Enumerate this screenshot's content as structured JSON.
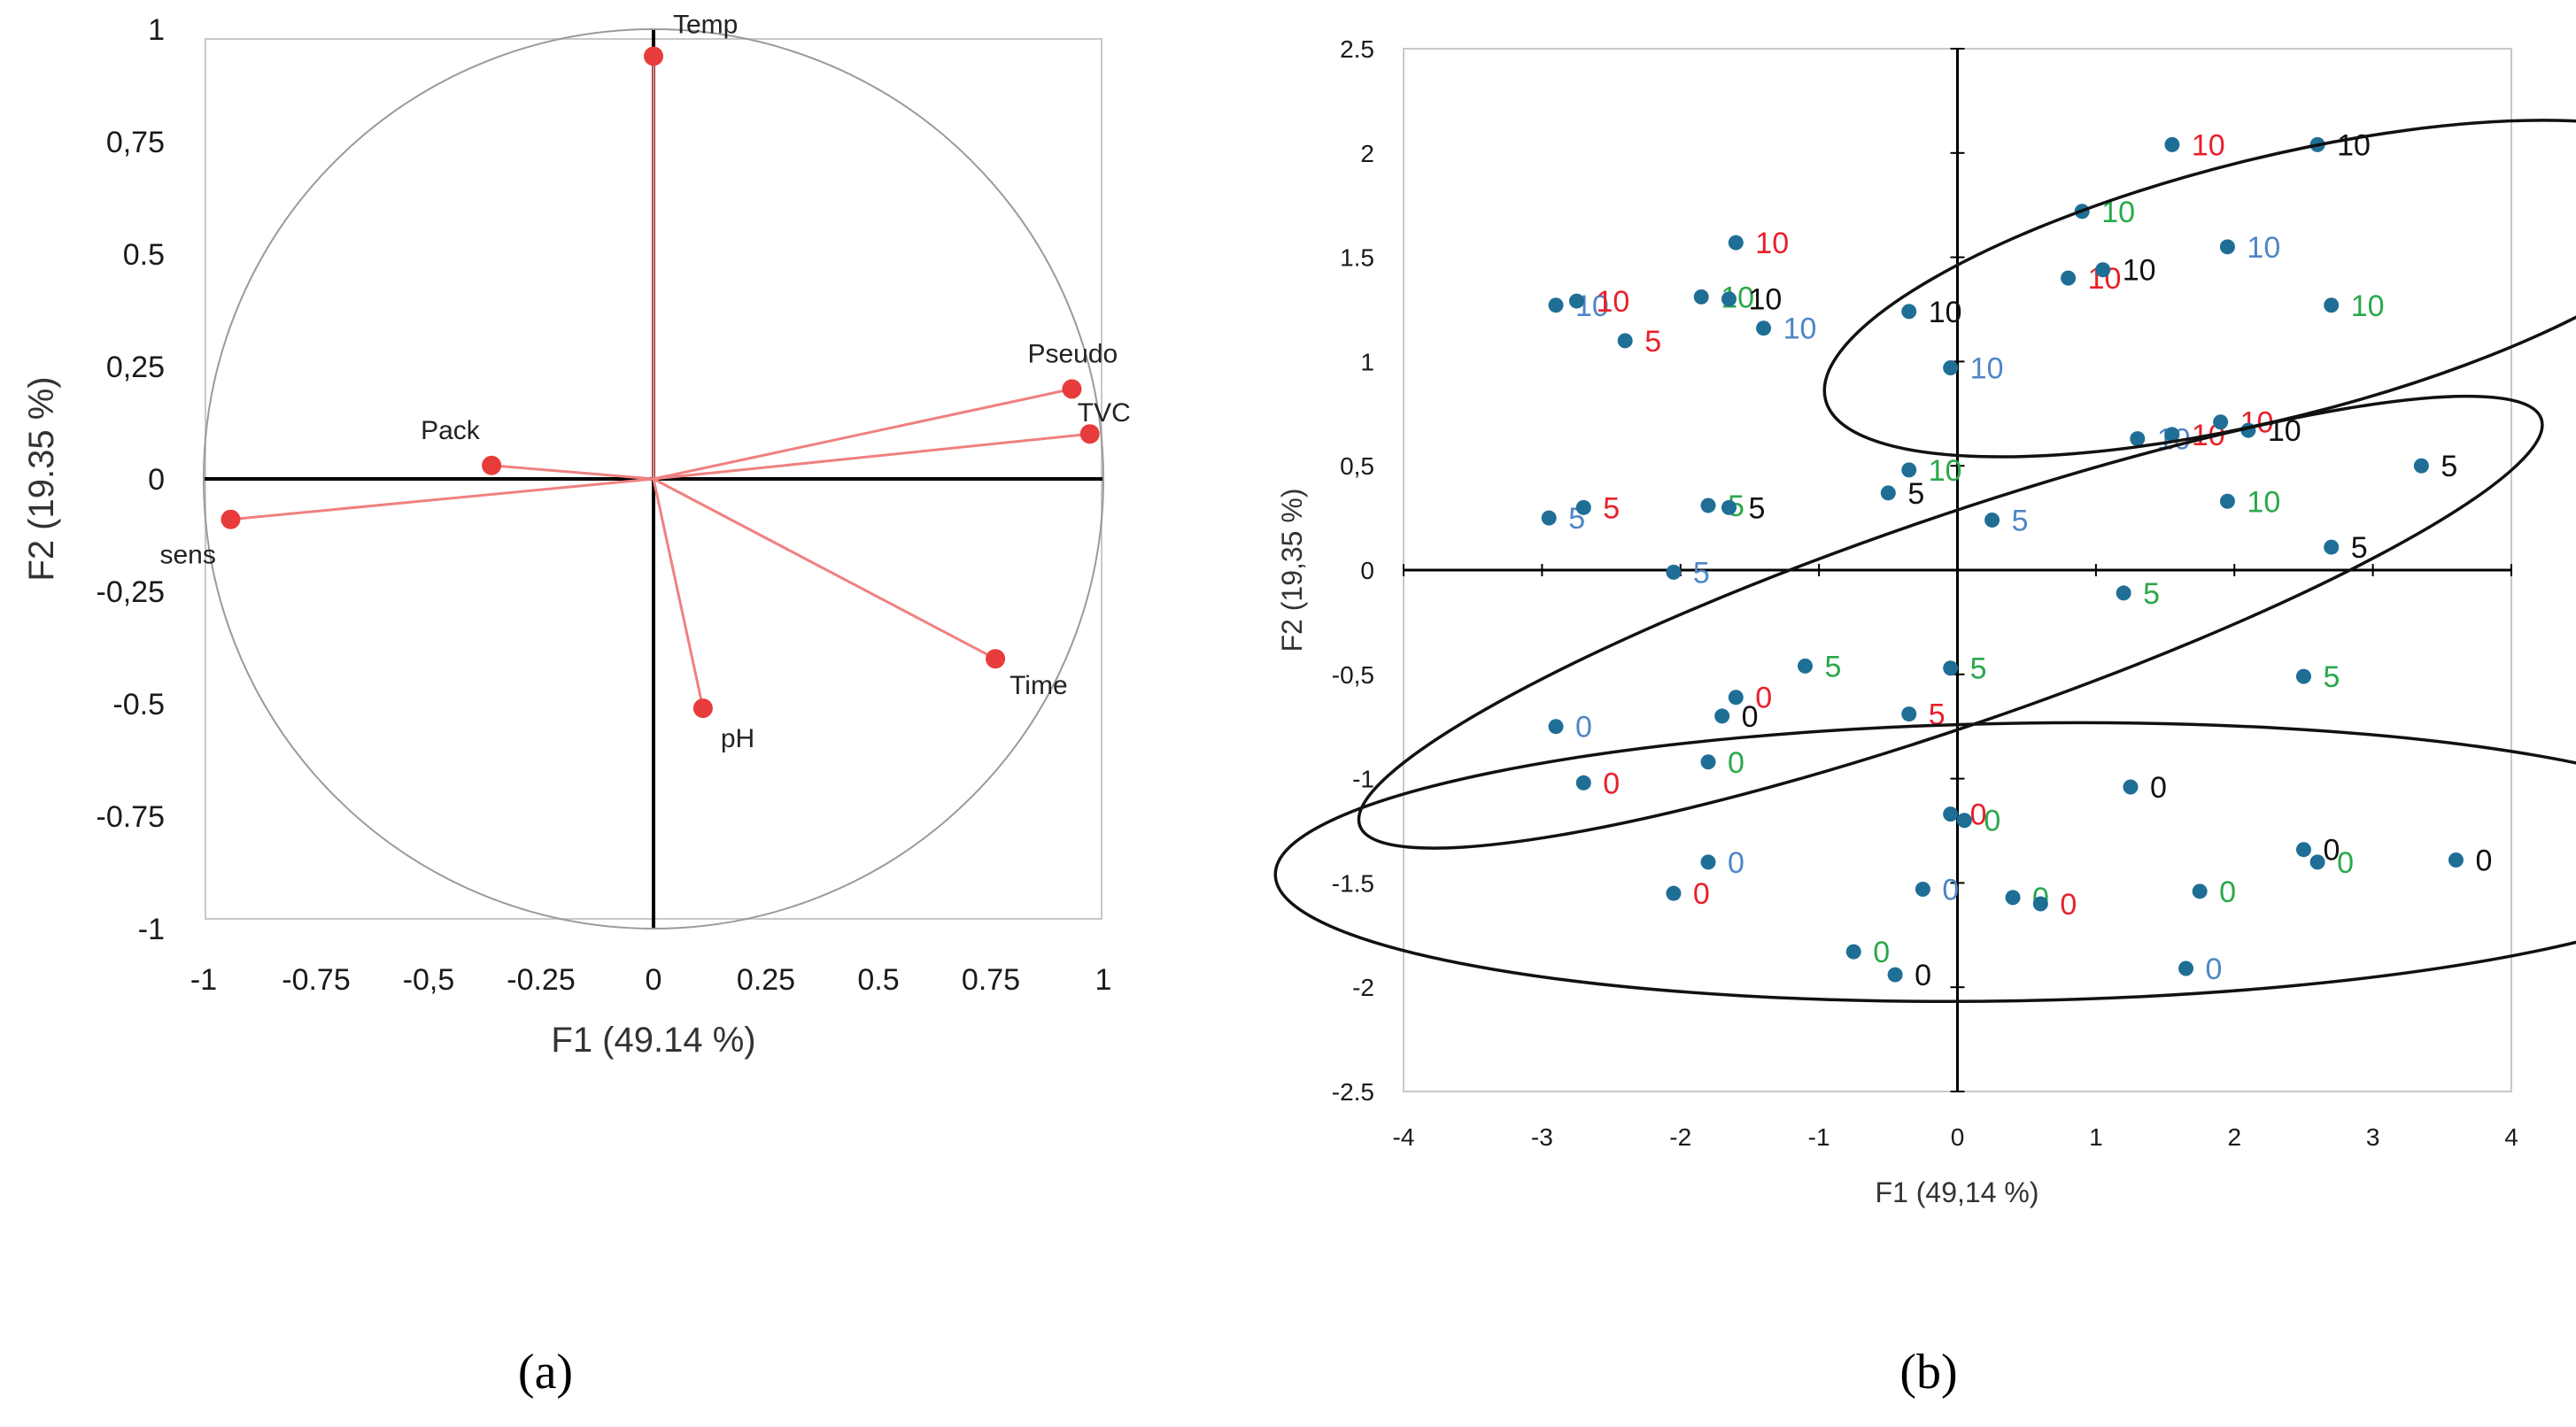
{
  "panel_labels": [
    "(a)",
    "(b)"
  ],
  "chart_data": [
    {
      "type": "scatter",
      "xlabel": "F1 (49.14 %)",
      "ylabel": "F2 (19.35 %)",
      "xlim": [
        -1,
        1
      ],
      "ylim": [
        -1,
        1
      ],
      "x_ticks": [
        "-1",
        "-0.75",
        "-0,5",
        "-0.25",
        "0",
        "0.25",
        "0.5",
        "0.75",
        "1"
      ],
      "x_tick_values": [
        -1,
        -0.75,
        -0.5,
        -0.25,
        0,
        0.25,
        0.5,
        0.75,
        1
      ],
      "y_ticks": [
        "1",
        "0,75",
        "0.5",
        "0,25",
        "0",
        "-0,25",
        "-0.5",
        "-0.75",
        "-1"
      ],
      "y_tick_values": [
        1,
        0.75,
        0.5,
        0.25,
        0,
        -0.25,
        -0.5,
        -0.75,
        -1
      ],
      "correlation_circle": true,
      "vector_color": "#f08080",
      "point_color": "#e83b3b",
      "variables": [
        {
          "label": "Temp",
          "x": 0.0,
          "y": 0.94
        },
        {
          "label": "Pseudo",
          "x": 0.93,
          "y": 0.2
        },
        {
          "label": "TVC",
          "x": 0.97,
          "y": 0.1
        },
        {
          "label": "Pack",
          "x": -0.36,
          "y": 0.03
        },
        {
          "label": "sens",
          "x": -0.94,
          "y": -0.09
        },
        {
          "label": "Time",
          "x": 0.76,
          "y": -0.4
        },
        {
          "label": "pH",
          "x": 0.11,
          "y": -0.51
        }
      ]
    },
    {
      "type": "scatter",
      "xlabel": "F1 (49,14 %)",
      "ylabel": "F2 (19,35 %)",
      "xlim": [
        -4,
        4
      ],
      "ylim": [
        -2.5,
        2.5
      ],
      "x_ticks": [
        "-4",
        "-3",
        "-2",
        "-1",
        "0",
        "1",
        "2",
        "3",
        "4"
      ],
      "x_tick_values": [
        -4,
        -3,
        -2,
        -1,
        0,
        1,
        2,
        3,
        4
      ],
      "y_ticks": [
        "2.5",
        "2",
        "1.5",
        "1",
        "0,5",
        "0",
        "-0,5",
        "-1",
        "-1.5",
        "-2",
        "-2.5"
      ],
      "y_tick_values": [
        2.5,
        2,
        1.5,
        1,
        0.5,
        0,
        -0.5,
        -1,
        -1.5,
        -2,
        -2.5
      ],
      "point_color": "#1f6e96",
      "label_colors": {
        "black": "#111111",
        "red": "#e8202a",
        "green": "#2aa84a",
        "blue": "#4f86c6"
      },
      "ellipses": [
        {
          "cx": 2.27,
          "cy": 1.35,
          "rx": 2.65,
          "ry": 0.75,
          "angle_deg": -14
        },
        {
          "cx": -0.05,
          "cy": -0.25,
          "rx": 3.6,
          "ry": 0.6,
          "angle_deg": -19
        },
        {
          "cx": 0.4,
          "cy": -1.4,
          "rx": 4.25,
          "ry": 0.8,
          "angle_deg": -1
        }
      ],
      "points": [
        {
          "x": 1.55,
          "y": 2.04,
          "label": "10",
          "color": "red"
        },
        {
          "x": 2.6,
          "y": 2.04,
          "label": "10",
          "color": "black"
        },
        {
          "x": 0.9,
          "y": 1.72,
          "label": "10",
          "color": "green"
        },
        {
          "x": -1.6,
          "y": 1.57,
          "label": "10",
          "color": "red"
        },
        {
          "x": 1.95,
          "y": 1.55,
          "label": "10",
          "color": "blue"
        },
        {
          "x": 0.8,
          "y": 1.4,
          "label": "10",
          "color": "red"
        },
        {
          "x": 1.05,
          "y": 1.44,
          "label": "10",
          "color": "black"
        },
        {
          "x": 2.7,
          "y": 1.27,
          "label": "10",
          "color": "green"
        },
        {
          "x": -2.9,
          "y": 1.27,
          "label": "10",
          "color": "blue"
        },
        {
          "x": -2.75,
          "y": 1.29,
          "label": "10",
          "color": "red"
        },
        {
          "x": -1.85,
          "y": 1.31,
          "label": "10",
          "color": "green"
        },
        {
          "x": -1.65,
          "y": 1.3,
          "label": "10",
          "color": "black"
        },
        {
          "x": -0.35,
          "y": 1.24,
          "label": "10",
          "color": "black"
        },
        {
          "x": -1.4,
          "y": 1.16,
          "label": "10",
          "color": "blue"
        },
        {
          "x": -0.05,
          "y": 0.97,
          "label": "10",
          "color": "blue"
        },
        {
          "x": -2.4,
          "y": 1.1,
          "label": "5",
          "color": "red"
        },
        {
          "x": 1.3,
          "y": 0.63,
          "label": "10",
          "color": "blue"
        },
        {
          "x": 1.55,
          "y": 0.65,
          "label": "10",
          "color": "red"
        },
        {
          "x": 1.9,
          "y": 0.71,
          "label": "10",
          "color": "red"
        },
        {
          "x": 2.1,
          "y": 0.67,
          "label": "10",
          "color": "black"
        },
        {
          "x": -0.35,
          "y": 0.48,
          "label": "10",
          "color": "green"
        },
        {
          "x": 1.95,
          "y": 0.33,
          "label": "10",
          "color": "green"
        },
        {
          "x": 3.35,
          "y": 0.5,
          "label": "5",
          "color": "black"
        },
        {
          "x": -0.5,
          "y": 0.37,
          "label": "5",
          "color": "black"
        },
        {
          "x": -2.95,
          "y": 0.25,
          "label": "5",
          "color": "blue"
        },
        {
          "x": -2.7,
          "y": 0.3,
          "label": "5",
          "color": "red"
        },
        {
          "x": -1.8,
          "y": 0.31,
          "label": "5",
          "color": "green"
        },
        {
          "x": -1.65,
          "y": 0.3,
          "label": "5",
          "color": "black"
        },
        {
          "x": 0.25,
          "y": 0.24,
          "label": "5",
          "color": "blue"
        },
        {
          "x": 2.7,
          "y": 0.11,
          "label": "5",
          "color": "black"
        },
        {
          "x": -2.05,
          "y": -0.01,
          "label": "5",
          "color": "blue"
        },
        {
          "x": 1.2,
          "y": -0.11,
          "label": "5",
          "color": "green"
        },
        {
          "x": -1.1,
          "y": -0.46,
          "label": "5",
          "color": "green"
        },
        {
          "x": -0.05,
          "y": -0.47,
          "label": "5",
          "color": "green"
        },
        {
          "x": 2.5,
          "y": -0.51,
          "label": "5",
          "color": "green"
        },
        {
          "x": -0.35,
          "y": -0.69,
          "label": "5",
          "color": "red"
        },
        {
          "x": -1.6,
          "y": -0.61,
          "label": "0",
          "color": "red"
        },
        {
          "x": -1.7,
          "y": -0.7,
          "label": "0",
          "color": "black"
        },
        {
          "x": -2.9,
          "y": -0.75,
          "label": "0",
          "color": "blue"
        },
        {
          "x": -1.8,
          "y": -0.92,
          "label": "0",
          "color": "green"
        },
        {
          "x": -2.7,
          "y": -1.02,
          "label": "0",
          "color": "red"
        },
        {
          "x": 1.25,
          "y": -1.04,
          "label": "0",
          "color": "black"
        },
        {
          "x": -0.05,
          "y": -1.17,
          "label": "0",
          "color": "red"
        },
        {
          "x": 0.05,
          "y": -1.2,
          "label": "0",
          "color": "green"
        },
        {
          "x": 2.5,
          "y": -1.34,
          "label": "0",
          "color": "black"
        },
        {
          "x": 2.6,
          "y": -1.4,
          "label": "0",
          "color": "green"
        },
        {
          "x": 3.6,
          "y": -1.39,
          "label": "0",
          "color": "black"
        },
        {
          "x": -1.8,
          "y": -1.4,
          "label": "0",
          "color": "blue"
        },
        {
          "x": -0.25,
          "y": -1.53,
          "label": "0",
          "color": "blue"
        },
        {
          "x": 0.4,
          "y": -1.57,
          "label": "0",
          "color": "green"
        },
        {
          "x": 0.6,
          "y": -1.6,
          "label": "0",
          "color": "red"
        },
        {
          "x": 1.75,
          "y": -1.54,
          "label": "0",
          "color": "green"
        },
        {
          "x": -2.05,
          "y": -1.55,
          "label": "0",
          "color": "red"
        },
        {
          "x": -0.75,
          "y": -1.83,
          "label": "0",
          "color": "green"
        },
        {
          "x": -0.45,
          "y": -1.94,
          "label": "0",
          "color": "black"
        },
        {
          "x": 1.65,
          "y": -1.91,
          "label": "0",
          "color": "blue"
        }
      ]
    }
  ]
}
